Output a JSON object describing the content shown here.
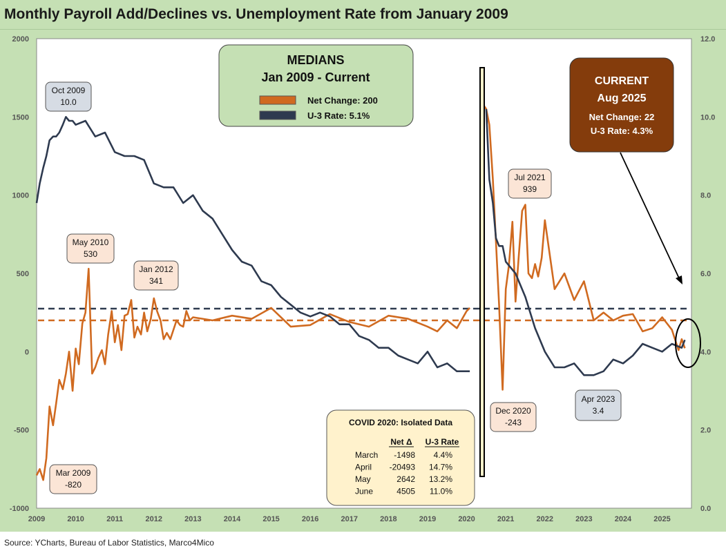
{
  "title": "Monthly Payroll Add/Declines vs. Unemployment Rate from January 2009",
  "source": "Source: YCharts, Bureau of Labor Statistics, Marco4Mico",
  "colors": {
    "net_change": "#d06a20",
    "u3": "#2e3a4f",
    "panel_bg": "#c5e0b4",
    "plot_bg": "#ffffff",
    "current_box": "#843c0c"
  },
  "medians_box": {
    "title_line1": "MEDIANS",
    "title_line2": "Jan 2009 - Current",
    "legend_net": "Net Change: 200",
    "legend_u3": "U-3 Rate: 5.1%"
  },
  "current_box": {
    "line1": "CURRENT",
    "line2": "Aug 2025",
    "line3": "Net Change: 22",
    "line4": "U-3 Rate: 4.3%"
  },
  "callouts": {
    "oct2009": {
      "label": "Oct 2009",
      "value": "10.0"
    },
    "may2010": {
      "label": "May 2010",
      "value": "530"
    },
    "jan2012": {
      "label": "Jan 2012",
      "value": "341"
    },
    "mar2009": {
      "label": "Mar 2009",
      "value": "-820"
    },
    "jul2021": {
      "label": "Jul 2021",
      "value": "939"
    },
    "dec2020": {
      "label": "Dec 2020",
      "value": "-243"
    },
    "apr2023": {
      "label": "Apr 2023",
      "value": "3.4"
    }
  },
  "covid_box": {
    "title": "COVID 2020:  Isolated Data",
    "col_net": "Net  Δ",
    "col_u3": "U-3 Rate",
    "rows": [
      {
        "month": "March",
        "net": "-1498",
        "u3": "4.4%"
      },
      {
        "month": "April",
        "net": "-20493",
        "u3": "14.7%"
      },
      {
        "month": "May",
        "net": "2642",
        "u3": "13.2%"
      },
      {
        "month": "June",
        "net": "4505",
        "u3": "11.0%"
      }
    ]
  },
  "chart_data": {
    "type": "line",
    "title": "Monthly Payroll Add/Declines vs. Unemployment Rate from January 2009",
    "x_ticks": [
      "2009",
      "2010",
      "2011",
      "2012",
      "2013",
      "2014",
      "2015",
      "2016",
      "2017",
      "2018",
      "2019",
      "2020",
      "2021",
      "2022",
      "2023",
      "2024",
      "2025"
    ],
    "y_left_ticks": [
      "2000",
      "1500",
      "1000",
      "500",
      "0",
      "-500",
      "-1000"
    ],
    "y_left_range": [
      -1000,
      2000
    ],
    "y_right_ticks": [
      "12.0",
      "10.0",
      "8.0",
      "6.0",
      "4.0",
      "2.0",
      "0.0"
    ],
    "y_right_range": [
      0,
      12
    ],
    "medians": {
      "net_change": 200,
      "u3": 5.1
    },
    "series": [
      {
        "name": "Net Change",
        "axis": "left",
        "segments": [
          {
            "x": [
              2009.0,
              2009.08,
              2009.17,
              2009.25,
              2009.33,
              2009.42,
              2009.5,
              2009.58,
              2009.67,
              2009.75,
              2009.83,
              2009.92,
              2010.0,
              2010.08,
              2010.17,
              2010.25,
              2010.33,
              2010.42,
              2010.5,
              2010.58,
              2010.67,
              2010.75,
              2010.83,
              2010.92,
              2011.0,
              2011.08,
              2011.17,
              2011.25,
              2011.33,
              2011.42,
              2011.5,
              2011.58,
              2011.67,
              2011.75,
              2011.83,
              2011.92,
              2012.0,
              2012.08,
              2012.17,
              2012.25,
              2012.33,
              2012.42,
              2012.5,
              2012.58,
              2012.67,
              2012.75,
              2012.83,
              2012.92,
              2013.0,
              2013.5,
              2014.0,
              2014.5,
              2015.0,
              2015.5,
              2016.0,
              2016.5,
              2017.0,
              2017.5,
              2018.0,
              2018.5,
              2019.0,
              2019.25,
              2019.5,
              2019.75,
              2020.0,
              2020.08
            ],
            "y": [
              -790,
              -750,
              -820,
              -680,
              -350,
              -470,
              -330,
              -180,
              -240,
              -140,
              0,
              -250,
              20,
              -80,
              180,
              250,
              530,
              -140,
              -100,
              -40,
              10,
              -80,
              110,
              260,
              60,
              170,
              10,
              230,
              240,
              330,
              90,
              160,
              110,
              250,
              130,
              210,
              341,
              260,
              200,
              80,
              120,
              80,
              140,
              200,
              170,
              160,
              260,
              200,
              220,
              200,
              230,
              210,
              280,
              160,
              170,
              240,
              190,
              160,
              230,
              210,
              160,
              130,
              200,
              150,
              260,
              280
            ]
          },
          {
            "x": [
              2020.42,
              2020.5,
              2020.58,
              2020.67,
              2020.75,
              2020.83,
              2020.92,
              2021.0,
              2021.08,
              2021.17,
              2021.25,
              2021.33,
              2021.42,
              2021.5,
              2021.58,
              2021.67,
              2021.75,
              2021.83,
              2021.92,
              2022.0,
              2022.25,
              2022.5,
              2022.75,
              2023.0,
              2023.25,
              2023.5,
              2023.75,
              2024.0,
              2024.25,
              2024.5,
              2024.75,
              2025.0,
              2025.25,
              2025.42,
              2025.5,
              2025.58
            ],
            "y": [
              1580,
              1550,
              1450,
              1100,
              700,
              300,
              -243,
              400,
              550,
              830,
              320,
              600,
              900,
              939,
              500,
              470,
              560,
              480,
              600,
              840,
              400,
              500,
              330,
              450,
              200,
              250,
              200,
              230,
              240,
              130,
              150,
              220,
              140,
              10,
              80,
              22
            ]
          }
        ]
      },
      {
        "name": "U-3 Rate",
        "axis": "right",
        "segments": [
          {
            "x": [
              2009.0,
              2009.08,
              2009.17,
              2009.25,
              2009.33,
              2009.42,
              2009.5,
              2009.58,
              2009.67,
              2009.75,
              2009.83,
              2009.92,
              2010.0,
              2010.25,
              2010.5,
              2010.75,
              2011.0,
              2011.25,
              2011.5,
              2011.75,
              2012.0,
              2012.25,
              2012.5,
              2012.75,
              2013.0,
              2013.25,
              2013.5,
              2013.75,
              2014.0,
              2014.25,
              2014.5,
              2014.75,
              2015.0,
              2015.25,
              2015.5,
              2015.75,
              2016.0,
              2016.25,
              2016.5,
              2016.75,
              2017.0,
              2017.25,
              2017.5,
              2017.75,
              2018.0,
              2018.25,
              2018.5,
              2018.75,
              2019.0,
              2019.25,
              2019.5,
              2019.75,
              2020.0,
              2020.08
            ],
            "y": [
              7.8,
              8.3,
              8.7,
              9.0,
              9.4,
              9.5,
              9.5,
              9.6,
              9.8,
              10.0,
              9.9,
              9.9,
              9.8,
              9.9,
              9.5,
              9.6,
              9.1,
              9.0,
              9.0,
              8.9,
              8.3,
              8.2,
              8.2,
              7.8,
              8.0,
              7.6,
              7.4,
              7.0,
              6.6,
              6.3,
              6.2,
              5.8,
              5.7,
              5.4,
              5.2,
              5.0,
              4.9,
              5.0,
              4.9,
              4.7,
              4.7,
              4.4,
              4.3,
              4.1,
              4.1,
              3.9,
              3.8,
              3.7,
              4.0,
              3.6,
              3.7,
              3.5,
              3.5,
              3.5
            ]
          },
          {
            "x": [
              2020.5,
              2020.58,
              2020.67,
              2020.75,
              2020.83,
              2020.92,
              2021.0,
              2021.25,
              2021.5,
              2021.75,
              2022.0,
              2022.25,
              2022.5,
              2022.75,
              2023.0,
              2023.25,
              2023.5,
              2023.75,
              2024.0,
              2024.25,
              2024.5,
              2024.75,
              2025.0,
              2025.25,
              2025.5,
              2025.58
            ],
            "y": [
              10.2,
              8.4,
              7.8,
              6.9,
              6.7,
              6.7,
              6.3,
              6.0,
              5.4,
              4.6,
              4.0,
              3.6,
              3.6,
              3.7,
              3.4,
              3.4,
              3.5,
              3.8,
              3.7,
              3.9,
              4.2,
              4.1,
              4.0,
              4.2,
              4.1,
              4.3
            ]
          }
        ]
      }
    ]
  }
}
